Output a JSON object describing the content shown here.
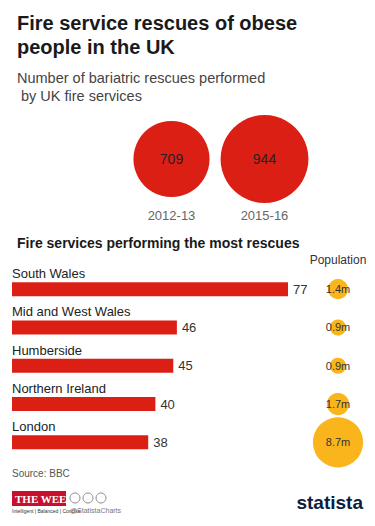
{
  "chart_data": [
    {
      "type": "bubble",
      "title": "Fire service rescues of obese people in the UK",
      "subtitle": "Number of bariatric rescues performed by UK fire services",
      "categories": [
        "2012-13",
        "2015-16"
      ],
      "values": [
        709,
        944
      ],
      "color": "#dc1f15",
      "data_labels": true,
      "tick_labels": "x"
    },
    {
      "type": "bar",
      "title": "Fire services performing the most rescues",
      "orientation": "horizontal",
      "categories": [
        "South Wales",
        "Mid and West Wales",
        "Humberside",
        "Northern Ireland",
        "London"
      ],
      "values": [
        77,
        46,
        45,
        40,
        38
      ],
      "color": "#dc1f15",
      "data_labels": true,
      "xlim": [
        0,
        77
      ],
      "tick_labels": "y",
      "grid": false,
      "population": {
        "title": "Population",
        "values": [
          1.4,
          0.9,
          0.9,
          1.7,
          8.7
        ],
        "value_labels": [
          "1.4m",
          "0.9m",
          "0.9m",
          "1.7m",
          "8.7m"
        ],
        "color": "#f9b51b"
      }
    }
  ],
  "footer": {
    "source": "Source: BBC",
    "publisher": "THE WEEK",
    "tagline": "Intelligent | Balanced | Concise",
    "handle": "@StatistaCharts",
    "brand": "statista"
  }
}
